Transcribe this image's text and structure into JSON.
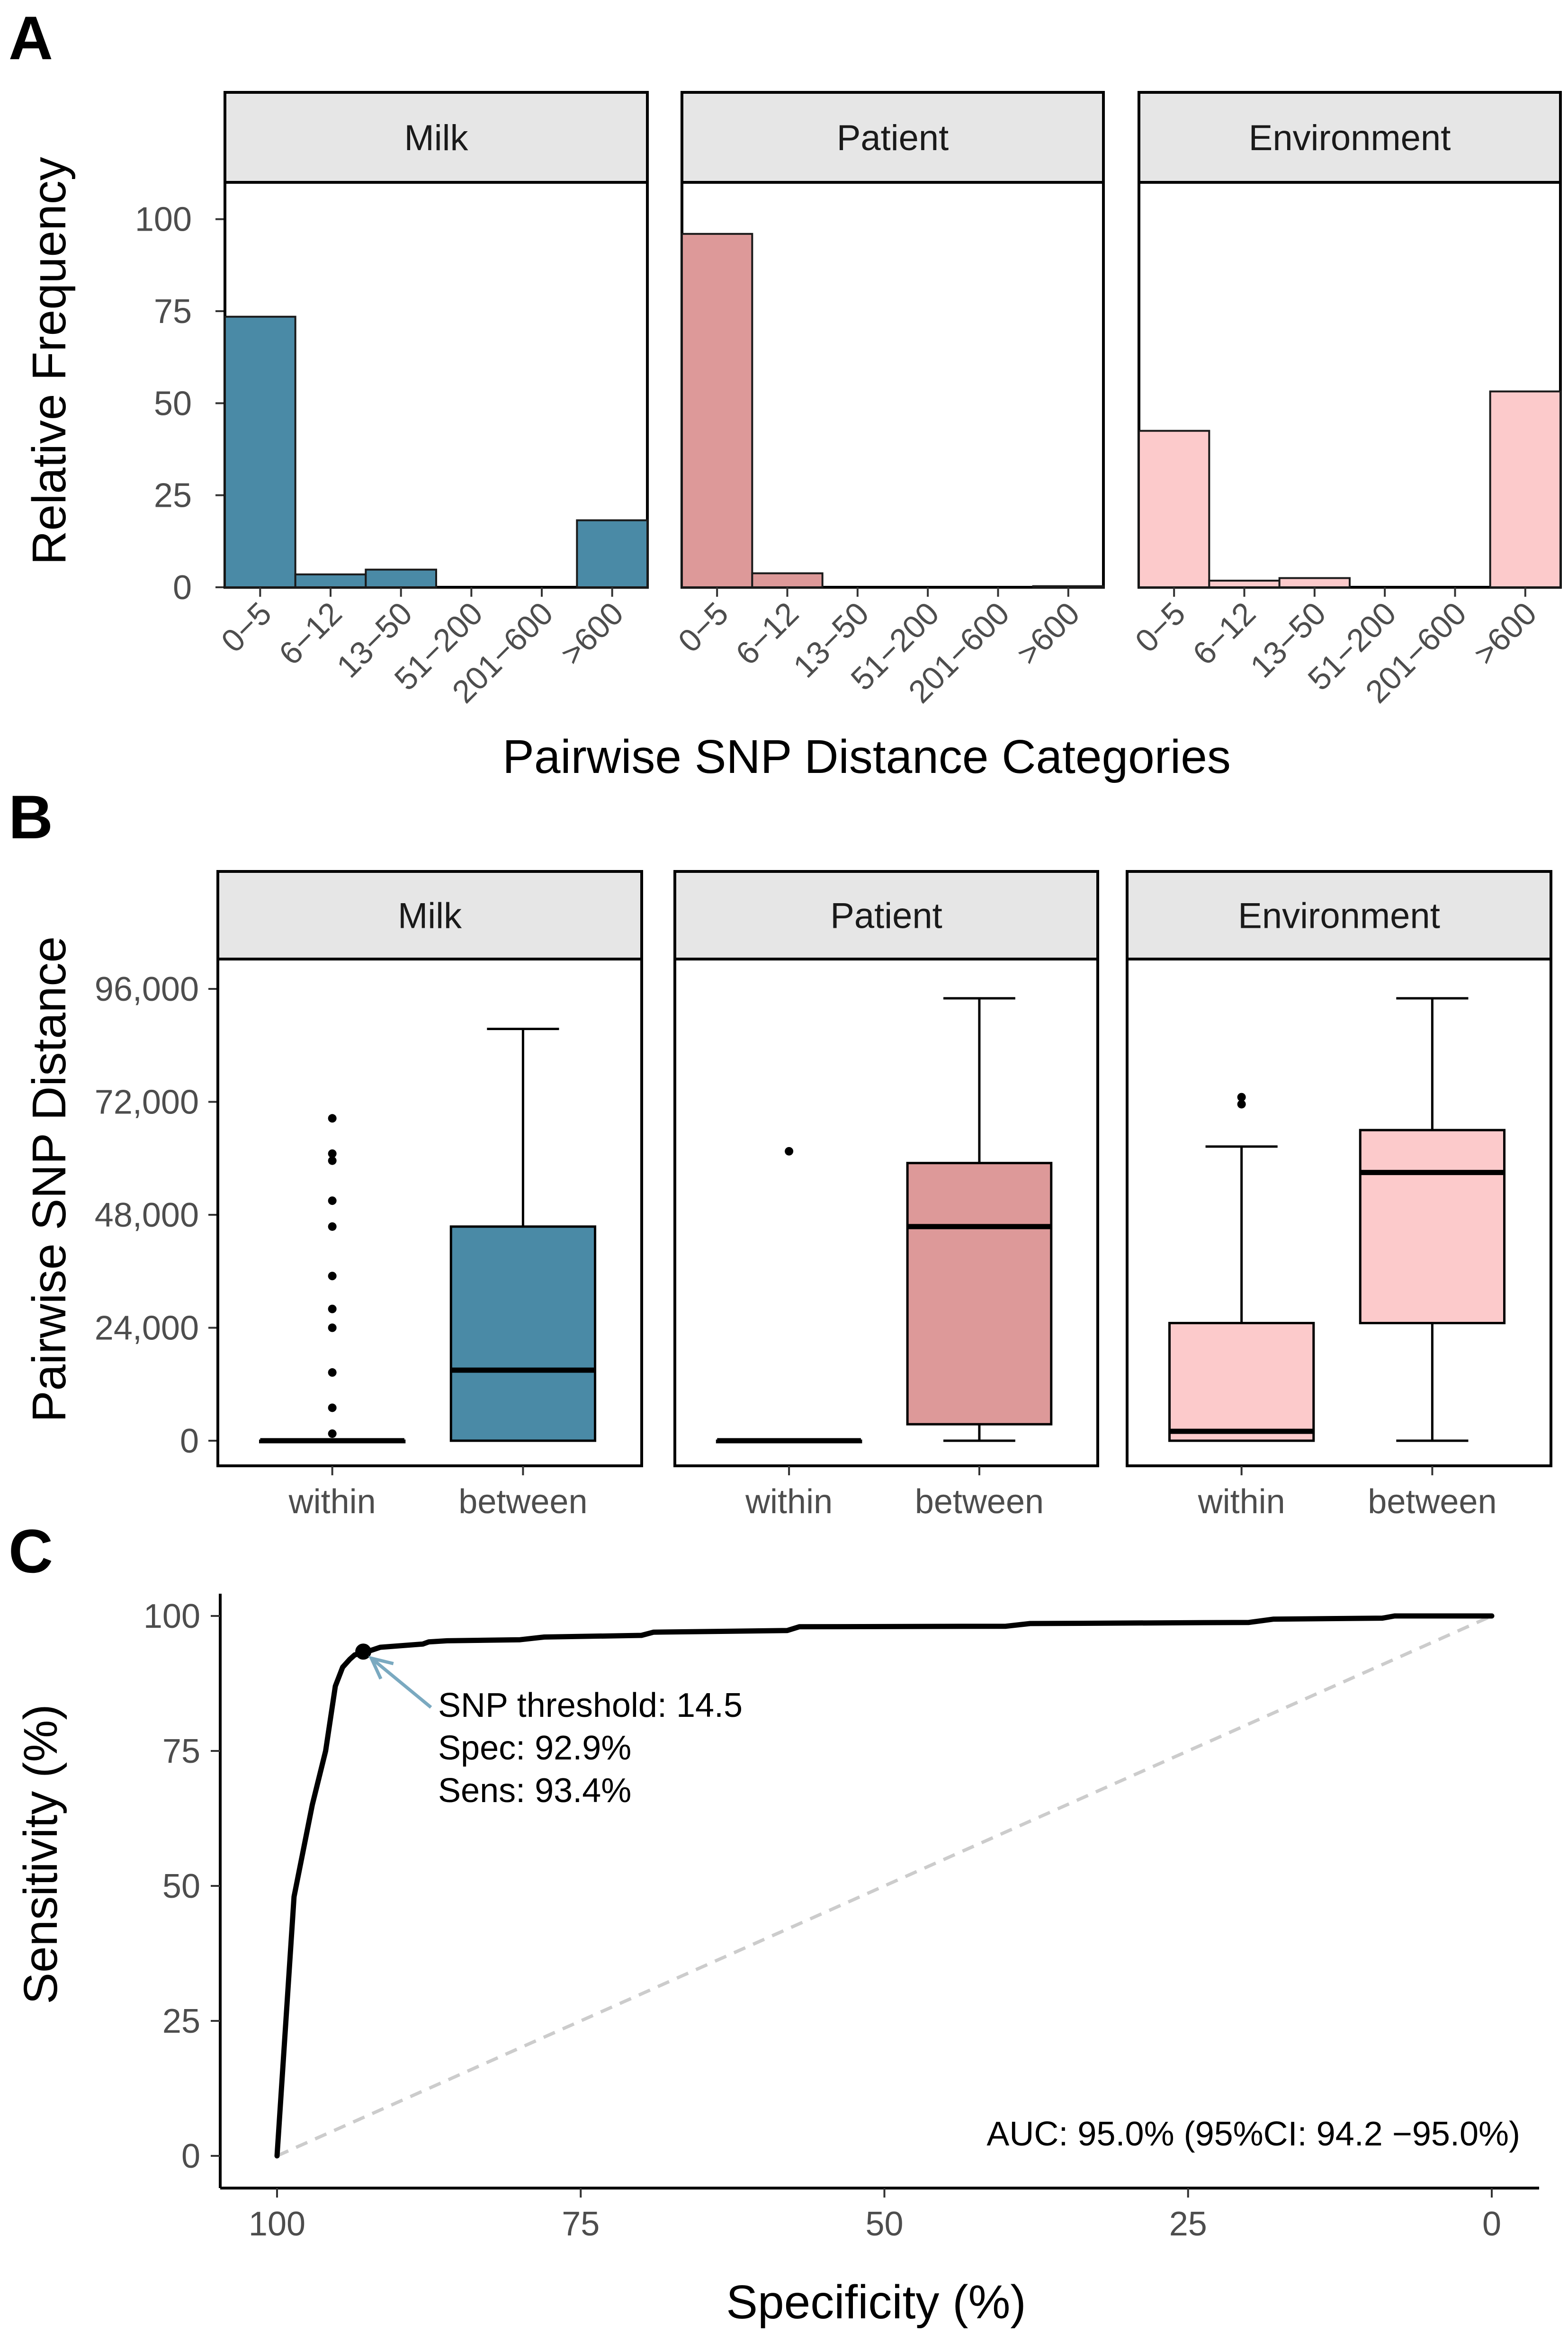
{
  "panel_labels": [
    "A",
    "B",
    "C"
  ],
  "colors": {
    "milk": "#4a8aa6",
    "patient": "#dd9999",
    "environment": "#fccacb",
    "strip": "#e6e6e6",
    "diagonal": "#cccccc",
    "arrow": "#7aa9c0",
    "axis": "#000000",
    "tick_text": "#4d4d4d"
  },
  "chart_data": [
    {
      "type": "bar",
      "panel": "A",
      "ylabel": "Relative Frequency",
      "xlabel": "Pairwise SNP Distance Categories",
      "ylim": [
        0,
        110
      ],
      "yticks": [
        0,
        25,
        50,
        75,
        100
      ],
      "categories": [
        "0−5",
        "6−12",
        "13−50",
        "51−200",
        "201−600",
        ">600"
      ],
      "series": [
        {
          "name": "Milk",
          "color_key": "milk",
          "values": [
            73.5,
            3.5,
            4.8,
            0,
            0,
            18.2
          ]
        },
        {
          "name": "Patient",
          "color_key": "patient",
          "values": [
            96.0,
            3.8,
            0,
            0,
            0,
            0.3
          ]
        },
        {
          "name": "Environment",
          "color_key": "environment",
          "values": [
            42.5,
            1.8,
            2.5,
            0,
            0,
            53.2
          ]
        }
      ]
    },
    {
      "type": "box",
      "panel": "B",
      "ylabel": "Pairwise SNP Distance",
      "ylim": [
        -3000,
        103000
      ],
      "yticks": [
        0,
        24000,
        48000,
        72000,
        96000
      ],
      "ytick_labels": [
        "0",
        "24,000",
        "48,000",
        "72,000",
        "96,000"
      ],
      "groups": [
        "within",
        "between"
      ],
      "facets": [
        {
          "name": "Milk",
          "color_key": "milk",
          "boxes": [
            {
              "group": "within",
              "min": 0,
              "q1": 0,
              "median": 0,
              "q3": 0,
              "max": 0,
              "outliers": [
                68500,
                61000,
                59500,
                51000,
                45500,
                35000,
                28000,
                24000,
                14500,
                7000,
                1500
              ]
            },
            {
              "group": "between",
              "min": 0,
              "q1": 0,
              "median": 15000,
              "q3": 45500,
              "max": 87500,
              "outliers": []
            }
          ]
        },
        {
          "name": "Patient",
          "color_key": "patient",
          "boxes": [
            {
              "group": "within",
              "min": 0,
              "q1": 0,
              "median": 0,
              "q3": 0,
              "max": 0,
              "outliers": [
                61500
              ]
            },
            {
              "group": "between",
              "min": 0,
              "q1": 3500,
              "median": 45500,
              "q3": 59000,
              "max": 94000,
              "outliers": []
            }
          ]
        },
        {
          "name": "Environment",
          "color_key": "environment",
          "boxes": [
            {
              "group": "within",
              "min": 0,
              "q1": 0,
              "median": 2000,
              "q3": 25000,
              "max": 62500,
              "outliers": [
                71500,
                73000
              ]
            },
            {
              "group": "between",
              "min": 0,
              "q1": 25000,
              "median": 57000,
              "q3": 66000,
              "max": 94000,
              "outliers": []
            }
          ]
        }
      ]
    },
    {
      "type": "line",
      "panel": "C",
      "xlabel": "Specificity (%)",
      "ylabel": "Sensitivity (%)",
      "xlim": [
        100,
        0
      ],
      "ylim": [
        0,
        100
      ],
      "xticks": [
        100,
        75,
        50,
        25,
        0
      ],
      "yticks": [
        0,
        25,
        50,
        75,
        100
      ],
      "series": [
        {
          "name": "ROC",
          "x": [
            100,
            98.6,
            97.1,
            96.0,
            95.2,
            94.6,
            94.0,
            93.6,
            93.2,
            92.9,
            92.3,
            91.5,
            88.0,
            87.5,
            86.0,
            80.0,
            78.0,
            70.0,
            69.0,
            58.0,
            57.0,
            40.0,
            38.0,
            20.0,
            18.0,
            9.0,
            8.0,
            0
          ],
          "y": [
            0,
            48.0,
            65.0,
            75.0,
            87.0,
            90.5,
            92.0,
            92.8,
            93.0,
            93.4,
            93.6,
            94.2,
            94.8,
            95.2,
            95.4,
            95.6,
            96.1,
            96.4,
            97.0,
            97.3,
            98.0,
            98.1,
            98.6,
            98.8,
            99.4,
            99.6,
            100,
            100
          ]
        },
        {
          "name": "reference",
          "x": [
            100,
            0
          ],
          "y": [
            0,
            100
          ]
        }
      ],
      "highlight_point": {
        "x": 92.9,
        "y": 93.4
      },
      "annotation_lines": [
        "SNP threshold: 14.5",
        "Spec: 92.9%",
        "Sens: 93.4%"
      ],
      "auc_text": "AUC: 95.0% (95%CI: 94.2 −95.0%)"
    }
  ]
}
